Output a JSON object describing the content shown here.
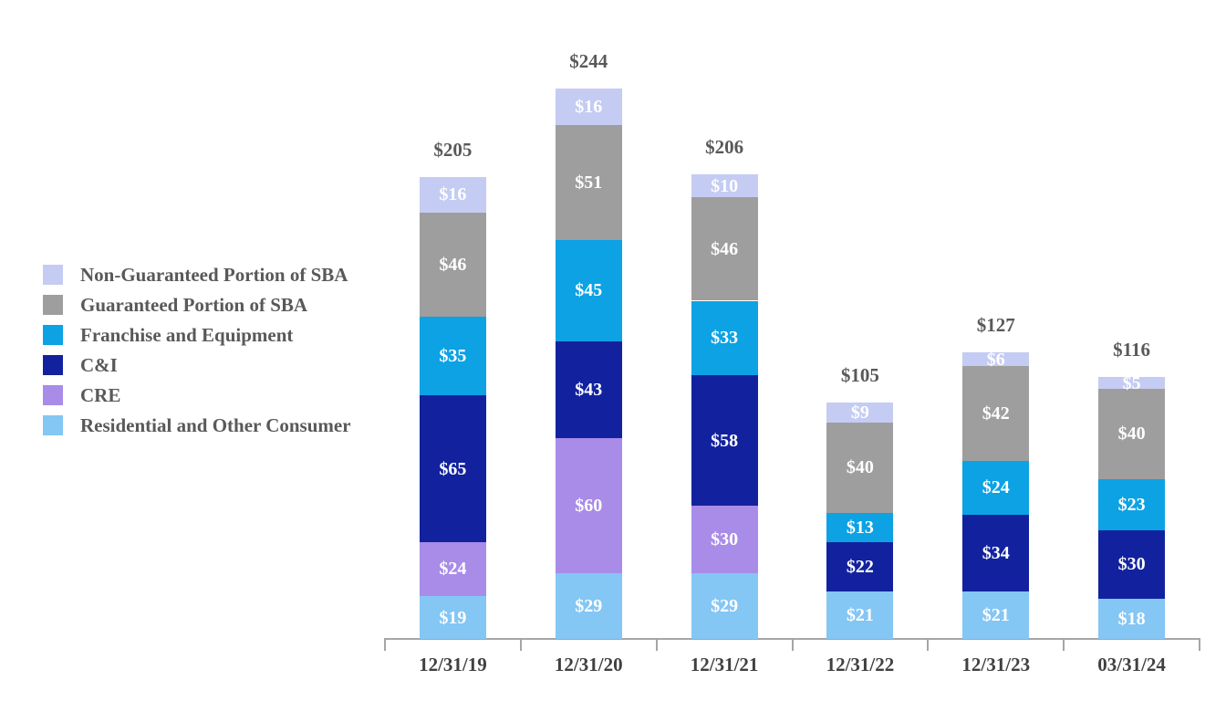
{
  "legend": {
    "items": [
      {
        "label": "Non-Guaranteed Portion of SBA"
      },
      {
        "label": "Guaranteed Portion of SBA"
      },
      {
        "label": "Franchise and Equipment"
      },
      {
        "label": "C&I"
      },
      {
        "label": "CRE"
      },
      {
        "label": "Residential and Other Consumer"
      }
    ]
  },
  "chart_data": {
    "type": "bar",
    "stacked": true,
    "value_prefix": "$",
    "categories": [
      "12/31/19",
      "12/31/20",
      "12/31/21",
      "12/31/22",
      "12/31/23",
      "03/31/24"
    ],
    "series": [
      {
        "name": "Residential and Other Consumer",
        "color": "#84c6f4",
        "values": [
          19,
          29,
          29,
          21,
          21,
          18
        ]
      },
      {
        "name": "CRE",
        "color": "#a88ce8",
        "values": [
          24,
          60,
          30,
          0,
          0,
          0
        ]
      },
      {
        "name": "C&I",
        "color": "#12229e",
        "values": [
          65,
          43,
          58,
          22,
          34,
          30
        ]
      },
      {
        "name": "Franchise and Equipment",
        "color": "#0ca2e4",
        "values": [
          35,
          45,
          33,
          13,
          24,
          23
        ]
      },
      {
        "name": "Guaranteed Portion of SBA",
        "color": "#9e9e9e",
        "values": [
          46,
          51,
          46,
          40,
          42,
          40
        ]
      },
      {
        "name": "Non-Guaranteed Portion of SBA",
        "color": "#c4ccf3",
        "values": [
          16,
          16,
          10,
          9,
          6,
          5
        ]
      }
    ],
    "totals": [
      205,
      244,
      206,
      105,
      127,
      116
    ],
    "title": "",
    "xlabel": "",
    "ylabel": "",
    "ylim": [
      0,
      250
    ],
    "grid": false,
    "legend_position": "left",
    "axis": {
      "color": "#a6a6a6",
      "tick_marks": "down",
      "labels_color": "#404040",
      "totals_color": "#595959"
    }
  }
}
